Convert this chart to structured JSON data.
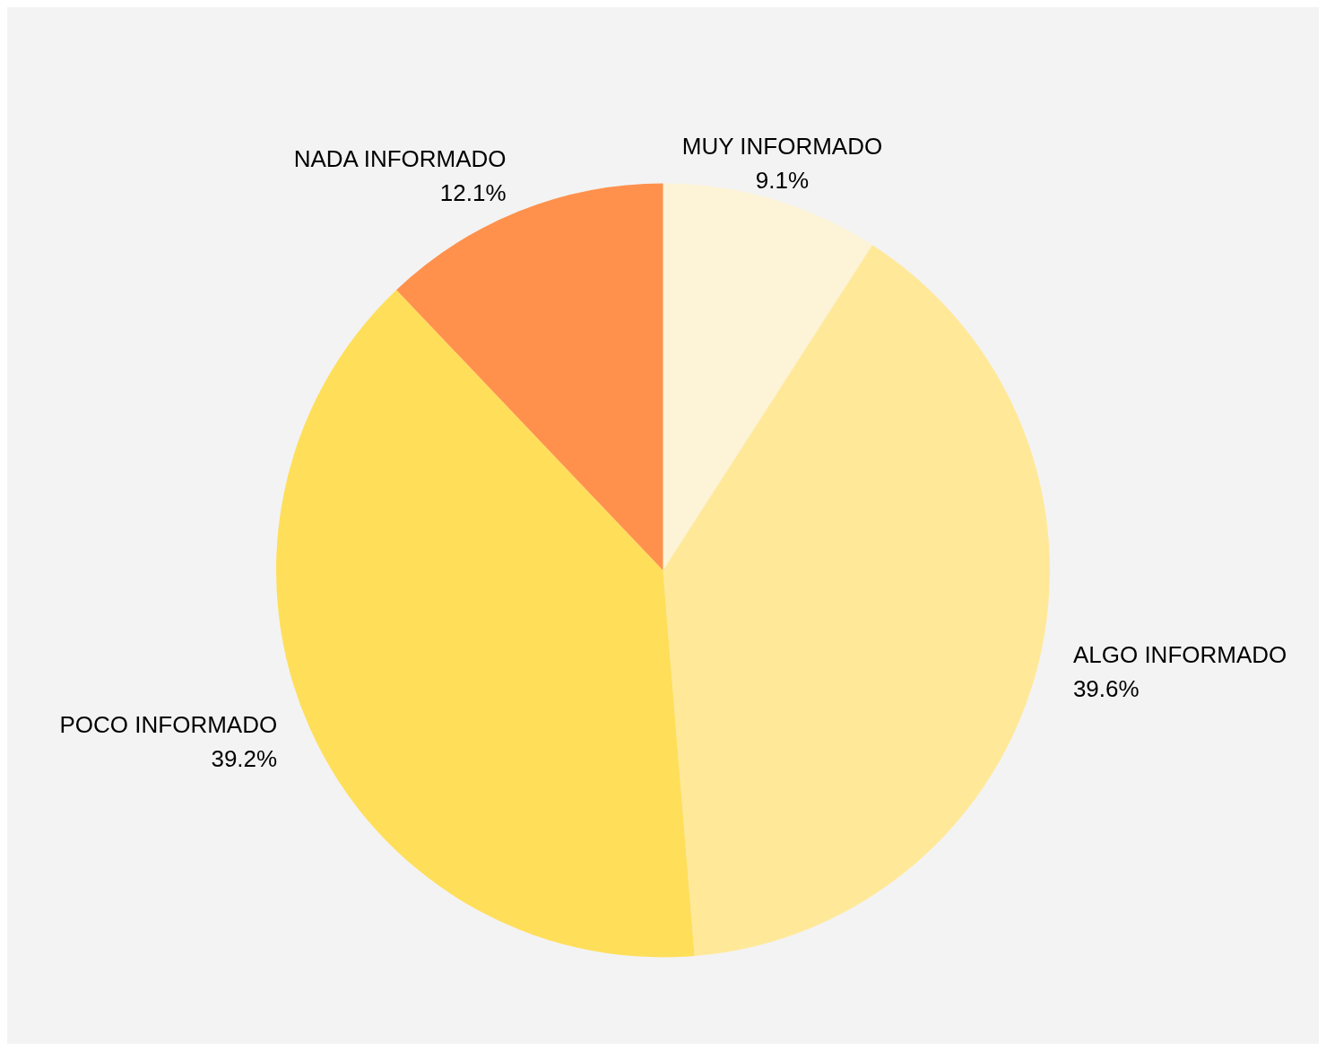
{
  "chart_data": {
    "type": "pie",
    "categories": [
      "MUY INFORMADO",
      "ALGO INFORMADO",
      "POCO INFORMADO",
      "NADA INFORMADO"
    ],
    "values": [
      9.1,
      39.6,
      39.2,
      12.1
    ],
    "value_labels": [
      "9.1%",
      "39.6%",
      "39.2%",
      "12.1%"
    ],
    "colors": [
      "#fdf3d6",
      "#ffe999",
      "#ffde5a",
      "#ff914d"
    ],
    "legend": false
  }
}
